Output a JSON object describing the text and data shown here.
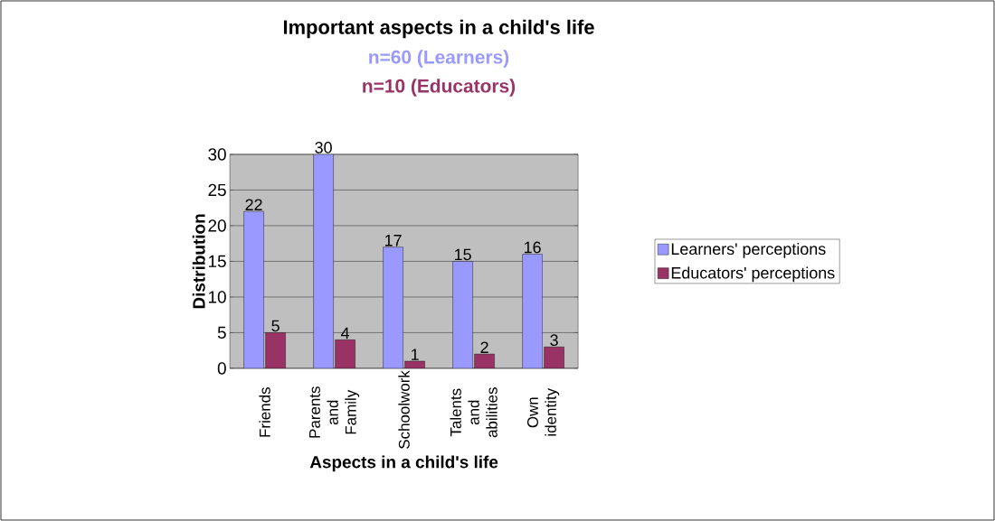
{
  "chart_data": {
    "type": "bar",
    "title": "Important aspects in a child's life",
    "subtitle": "n=60 (Learners)",
    "annotations": [
      "n=10 (Educators)"
    ],
    "xlabel": "Aspects in a child's life",
    "ylabel": "Distribution",
    "categories": [
      "Friends",
      "Parents and Family",
      "Schoolwork",
      "Talents and abilities",
      "Own identity"
    ],
    "series": [
      {
        "name": "Learners' perceptions",
        "color": "#9999ff",
        "values": [
          22,
          30,
          17,
          15,
          16
        ]
      },
      {
        "name": "Educators' perceptions",
        "color": "#993366",
        "values": [
          5,
          4,
          1,
          2,
          3
        ]
      }
    ],
    "ylim": [
      0,
      30
    ],
    "yticks": [
      0,
      5,
      10,
      15,
      20,
      25,
      30
    ],
    "grid": "y",
    "legend": "right",
    "data_labels": true
  }
}
